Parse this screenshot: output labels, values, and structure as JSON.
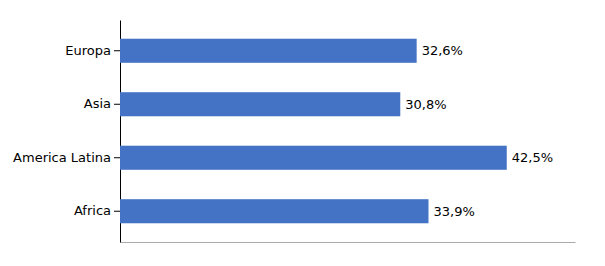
{
  "chart_data": {
    "type": "bar",
    "orientation": "horizontal",
    "categories": [
      "Africa",
      "America Latina",
      "Asia",
      "Europa"
    ],
    "values": [
      33.9,
      42.5,
      30.8,
      32.6
    ],
    "value_labels": [
      "33,9%",
      "42,5%",
      "30,8%",
      "32,6%"
    ],
    "data_labels": true,
    "color": "#4472C4",
    "xlim": [
      0,
      50
    ],
    "tick_labels": "y"
  }
}
